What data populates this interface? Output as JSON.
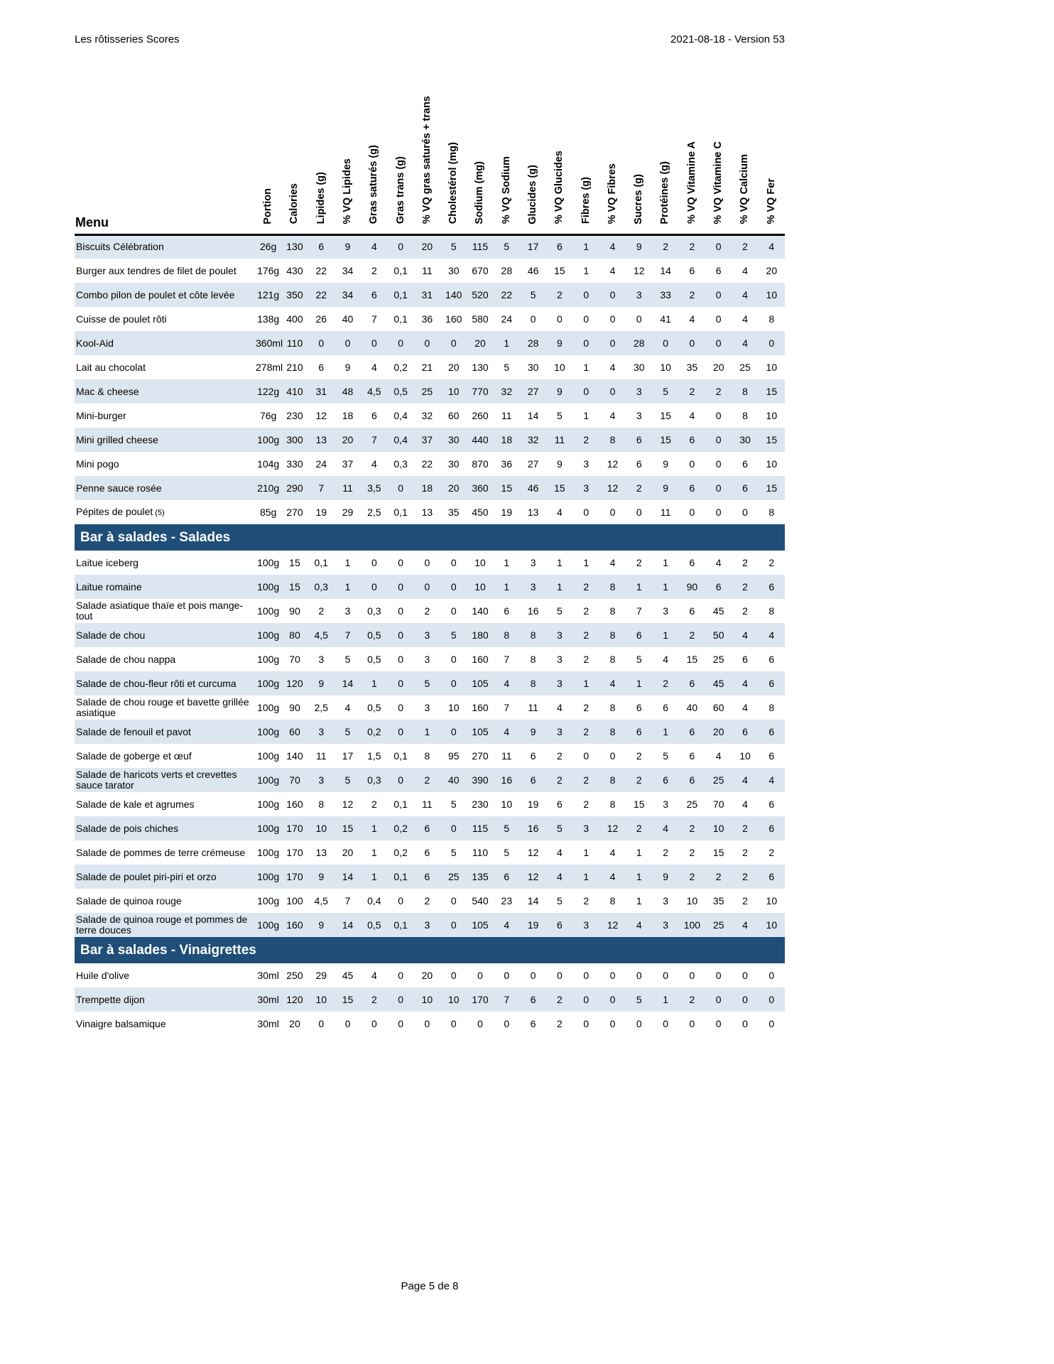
{
  "document": {
    "header_left": "Les rôtisseries Scores",
    "header_right": "2021-08-18 - Version 53",
    "footer": "Page 5 de 8"
  },
  "colors": {
    "row_shade": "#dce6f1",
    "section_bar": "#1f4e78"
  },
  "table": {
    "menu_header": "Menu",
    "columns": [
      "Portion",
      "Calories",
      "Lipides (g)",
      "% VQ Lipides",
      "Gras saturés (g)",
      "Gras trans (g)",
      "% VQ gras saturés + trans",
      "Cholestérol (mg)",
      "Sodium (mg)",
      "% VQ Sodium",
      "Glucides (g)",
      "% VQ Glucides",
      "Fibres (g)",
      "% VQ Fibres",
      "Sucres (g)",
      "Protéines (g)",
      "% VQ Vitamine A",
      "% VQ Vitamine C",
      "% VQ Calcium",
      "% VQ Fer"
    ],
    "sections": [
      {
        "header": null,
        "rows": [
          {
            "name": "Biscuits Célébration",
            "values": [
              "26g",
              "130",
              "6",
              "9",
              "4",
              "0",
              "20",
              "5",
              "115",
              "5",
              "17",
              "6",
              "1",
              "4",
              "9",
              "2",
              "2",
              "0",
              "2",
              "4"
            ]
          },
          {
            "name": "Burger aux tendres de filet de poulet",
            "values": [
              "176g",
              "430",
              "22",
              "34",
              "2",
              "0,1",
              "11",
              "30",
              "670",
              "28",
              "46",
              "15",
              "1",
              "4",
              "12",
              "14",
              "6",
              "6",
              "4",
              "20"
            ]
          },
          {
            "name": "Combo pilon de poulet et côte levée",
            "values": [
              "121g",
              "350",
              "22",
              "34",
              "6",
              "0,1",
              "31",
              "140",
              "520",
              "22",
              "5",
              "2",
              "0",
              "0",
              "3",
              "33",
              "2",
              "0",
              "4",
              "10"
            ]
          },
          {
            "name": "Cuisse de poulet rôti",
            "values": [
              "138g",
              "400",
              "26",
              "40",
              "7",
              "0,1",
              "36",
              "160",
              "580",
              "24",
              "0",
              "0",
              "0",
              "0",
              "0",
              "41",
              "4",
              "0",
              "4",
              "8"
            ]
          },
          {
            "name": "Kool-Aid",
            "values": [
              "360ml",
              "110",
              "0",
              "0",
              "0",
              "0",
              "0",
              "0",
              "20",
              "1",
              "28",
              "9",
              "0",
              "0",
              "28",
              "0",
              "0",
              "0",
              "4",
              "0"
            ]
          },
          {
            "name": "Lait au chocolat",
            "values": [
              "278ml",
              "210",
              "6",
              "9",
              "4",
              "0,2",
              "21",
              "20",
              "130",
              "5",
              "30",
              "10",
              "1",
              "4",
              "30",
              "10",
              "35",
              "20",
              "25",
              "10"
            ]
          },
          {
            "name": "Mac & cheese",
            "values": [
              "122g",
              "410",
              "31",
              "48",
              "4,5",
              "0,5",
              "25",
              "10",
              "770",
              "32",
              "27",
              "9",
              "0",
              "0",
              "3",
              "5",
              "2",
              "2",
              "8",
              "15"
            ]
          },
          {
            "name": "Mini-burger",
            "values": [
              "76g",
              "230",
              "12",
              "18",
              "6",
              "0,4",
              "32",
              "60",
              "260",
              "11",
              "14",
              "5",
              "1",
              "4",
              "3",
              "15",
              "4",
              "0",
              "8",
              "10"
            ]
          },
          {
            "name": "Mini grilled cheese",
            "values": [
              "100g",
              "300",
              "13",
              "20",
              "7",
              "0,4",
              "37",
              "30",
              "440",
              "18",
              "32",
              "11",
              "2",
              "8",
              "6",
              "15",
              "6",
              "0",
              "30",
              "15"
            ]
          },
          {
            "name": "Mini pogo",
            "values": [
              "104g",
              "330",
              "24",
              "37",
              "4",
              "0,3",
              "22",
              "30",
              "870",
              "36",
              "27",
              "9",
              "3",
              "12",
              "6",
              "9",
              "0",
              "0",
              "6",
              "10"
            ]
          },
          {
            "name": "Penne sauce rosée",
            "values": [
              "210g",
              "290",
              "7",
              "11",
              "3,5",
              "0",
              "18",
              "20",
              "360",
              "15",
              "46",
              "15",
              "3",
              "12",
              "2",
              "9",
              "6",
              "0",
              "6",
              "15"
            ]
          },
          {
            "name": "Pépites de poulet",
            "note": "(5)",
            "values": [
              "85g",
              "270",
              "19",
              "29",
              "2,5",
              "0,1",
              "13",
              "35",
              "450",
              "19",
              "13",
              "4",
              "0",
              "0",
              "0",
              "11",
              "0",
              "0",
              "0",
              "8"
            ]
          }
        ]
      },
      {
        "header": "Bar à salades - Salades",
        "rows": [
          {
            "name": "Laitue iceberg",
            "values": [
              "100g",
              "15",
              "0,1",
              "1",
              "0",
              "0",
              "0",
              "0",
              "10",
              "1",
              "3",
              "1",
              "1",
              "4",
              "2",
              "1",
              "6",
              "4",
              "2",
              "2"
            ]
          },
          {
            "name": "Laitue romaine",
            "values": [
              "100g",
              "15",
              "0,3",
              "1",
              "0",
              "0",
              "0",
              "0",
              "10",
              "1",
              "3",
              "1",
              "2",
              "8",
              "1",
              "1",
              "90",
              "6",
              "2",
              "6"
            ]
          },
          {
            "name": "Salade asiatique thaïe et pois mange-tout",
            "values": [
              "100g",
              "90",
              "2",
              "3",
              "0,3",
              "0",
              "2",
              "0",
              "140",
              "6",
              "16",
              "5",
              "2",
              "8",
              "7",
              "3",
              "6",
              "45",
              "2",
              "8"
            ]
          },
          {
            "name": "Salade de chou",
            "values": [
              "100g",
              "80",
              "4,5",
              "7",
              "0,5",
              "0",
              "3",
              "5",
              "180",
              "8",
              "8",
              "3",
              "2",
              "8",
              "6",
              "1",
              "2",
              "50",
              "4",
              "4"
            ]
          },
          {
            "name": "Salade de chou nappa",
            "values": [
              "100g",
              "70",
              "3",
              "5",
              "0,5",
              "0",
              "3",
              "0",
              "160",
              "7",
              "8",
              "3",
              "2",
              "8",
              "5",
              "4",
              "15",
              "25",
              "6",
              "6"
            ]
          },
          {
            "name": "Salade de chou-fleur rôti et curcuma",
            "values": [
              "100g",
              "120",
              "9",
              "14",
              "1",
              "0",
              "5",
              "0",
              "105",
              "4",
              "8",
              "3",
              "1",
              "4",
              "1",
              "2",
              "6",
              "45",
              "4",
              "6"
            ]
          },
          {
            "name": "Salade de chou rouge et bavette grillée asiatique",
            "values": [
              "100g",
              "90",
              "2,5",
              "4",
              "0,5",
              "0",
              "3",
              "10",
              "160",
              "7",
              "11",
              "4",
              "2",
              "8",
              "6",
              "6",
              "40",
              "60",
              "4",
              "8"
            ]
          },
          {
            "name": "Salade de fenouil et pavot",
            "values": [
              "100g",
              "60",
              "3",
              "5",
              "0,2",
              "0",
              "1",
              "0",
              "105",
              "4",
              "9",
              "3",
              "2",
              "8",
              "6",
              "1",
              "6",
              "20",
              "6",
              "6"
            ]
          },
          {
            "name": "Salade de goberge et œuf",
            "values": [
              "100g",
              "140",
              "11",
              "17",
              "1,5",
              "0,1",
              "8",
              "95",
              "270",
              "11",
              "6",
              "2",
              "0",
              "0",
              "2",
              "5",
              "6",
              "4",
              "10",
              "6"
            ]
          },
          {
            "name": "Salade de haricots verts et crevettes sauce tarator",
            "values": [
              "100g",
              "70",
              "3",
              "5",
              "0,3",
              "0",
              "2",
              "40",
              "390",
              "16",
              "6",
              "2",
              "2",
              "8",
              "2",
              "6",
              "6",
              "25",
              "4",
              "4"
            ]
          },
          {
            "name": "Salade de kale et agrumes",
            "values": [
              "100g",
              "160",
              "8",
              "12",
              "2",
              "0,1",
              "11",
              "5",
              "230",
              "10",
              "19",
              "6",
              "2",
              "8",
              "15",
              "3",
              "25",
              "70",
              "4",
              "6"
            ]
          },
          {
            "name": "Salade de pois chiches",
            "values": [
              "100g",
              "170",
              "10",
              "15",
              "1",
              "0,2",
              "6",
              "0",
              "115",
              "5",
              "16",
              "5",
              "3",
              "12",
              "2",
              "4",
              "2",
              "10",
              "2",
              "6"
            ]
          },
          {
            "name": "Salade de pommes de terre crémeuse",
            "values": [
              "100g",
              "170",
              "13",
              "20",
              "1",
              "0,2",
              "6",
              "5",
              "110",
              "5",
              "12",
              "4",
              "1",
              "4",
              "1",
              "2",
              "2",
              "15",
              "2",
              "2"
            ]
          },
          {
            "name": "Salade de poulet piri-piri et orzo",
            "values": [
              "100g",
              "170",
              "9",
              "14",
              "1",
              "0,1",
              "6",
              "25",
              "135",
              "6",
              "12",
              "4",
              "1",
              "4",
              "1",
              "9",
              "2",
              "2",
              "2",
              "6"
            ]
          },
          {
            "name": "Salade de quinoa rouge",
            "values": [
              "100g",
              "100",
              "4,5",
              "7",
              "0,4",
              "0",
              "2",
              "0",
              "540",
              "23",
              "14",
              "5",
              "2",
              "8",
              "1",
              "3",
              "10",
              "35",
              "2",
              "10"
            ]
          },
          {
            "name": "Salade de quinoa rouge et pommes de terre douces",
            "values": [
              "100g",
              "160",
              "9",
              "14",
              "0,5",
              "0,1",
              "3",
              "0",
              "105",
              "4",
              "19",
              "6",
              "3",
              "12",
              "4",
              "3",
              "100",
              "25",
              "4",
              "10"
            ]
          }
        ]
      },
      {
        "header": "Bar à salades - Vinaigrettes",
        "rows": [
          {
            "name": "Huile d'olive",
            "values": [
              "30ml",
              "250",
              "29",
              "45",
              "4",
              "0",
              "20",
              "0",
              "0",
              "0",
              "0",
              "0",
              "0",
              "0",
              "0",
              "0",
              "0",
              "0",
              "0",
              "0"
            ]
          },
          {
            "name": "Trempette dijon",
            "values": [
              "30ml",
              "120",
              "10",
              "15",
              "2",
              "0",
              "10",
              "10",
              "170",
              "7",
              "6",
              "2",
              "0",
              "0",
              "5",
              "1",
              "2",
              "0",
              "0",
              "0"
            ]
          },
          {
            "name": "Vinaigre balsamique",
            "values": [
              "30ml",
              "20",
              "0",
              "0",
              "0",
              "0",
              "0",
              "0",
              "0",
              "0",
              "6",
              "2",
              "0",
              "0",
              "0",
              "0",
              "0",
              "0",
              "0",
              "0"
            ]
          }
        ]
      }
    ]
  }
}
